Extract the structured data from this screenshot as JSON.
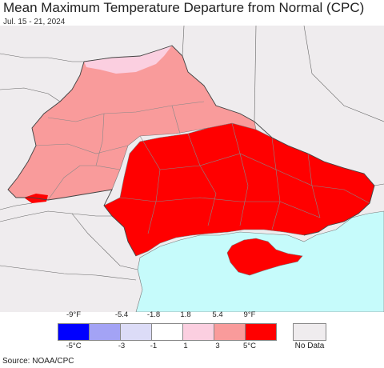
{
  "header": {
    "title": "Mean Maximum Temperature Departure from Normal (CPC)",
    "date_range": "Jul. 15 - 21, 2024"
  },
  "legend": {
    "fahrenheit_ticks": [
      "-9°F",
      "-5.4",
      "-1.8",
      "1.8",
      "5.4",
      "9°F"
    ],
    "celsius_ticks": [
      "-5°C",
      "-3",
      "-1",
      "1",
      "3",
      "5°C"
    ],
    "colors": [
      "#0000ff",
      "#a3a3f5",
      "#dcdcf7",
      "#ffffff",
      "#fbcfe0",
      "#f99b9b",
      "#ff0000"
    ],
    "no_data_label": "No Data",
    "no_data_color": "#efecee"
  },
  "map_colors": {
    "background_land": "#efecee",
    "sea": "#c6fbfb",
    "light_pink": "#fbcfe0",
    "salmon": "#f99b9b",
    "red": "#ff0000"
  },
  "footer": {
    "source": "Source: NOAA/CPC"
  }
}
